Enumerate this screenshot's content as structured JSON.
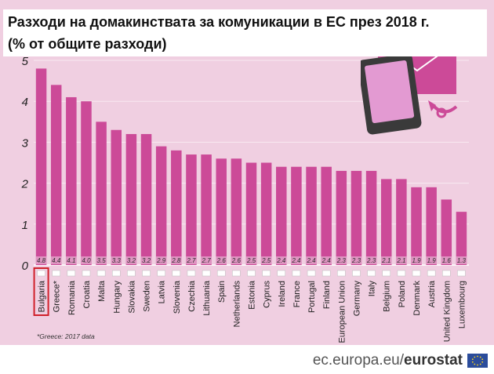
{
  "title_line1": "Разходи на домакинствата за комуникации в ЕС през 2018 г.",
  "title_line2": "(% от общите разходи)",
  "footnote": "*Greece: 2017 data",
  "source_prefix": "ec.europa.eu/",
  "source_brand": "eurostat",
  "colors": {
    "background": "#f0cfe1",
    "bar": "#cc4a98",
    "bar_label_box": "#e3a6cc",
    "highlight_frame": "#d0202a"
  },
  "chart_data": {
    "type": "bar",
    "title": "Разходи на домакинствата за комуникации в ЕС през 2018 г.",
    "subtitle": "(% от общите разходи)",
    "categories": [
      "Bulgaria",
      "Greece*",
      "Romania",
      "Croatia",
      "Malta",
      "Hungary",
      "Slovakia",
      "Sweden",
      "Latvia",
      "Slovenia",
      "Czechia",
      "Lithuania",
      "Spain",
      "Netherlands",
      "Estonia",
      "Cyprus",
      "Ireland",
      "France",
      "Portugal",
      "Finland",
      "European Union",
      "Germany",
      "Italy",
      "Belgium",
      "Poland",
      "Denmark",
      "Austria",
      "United Kingdom",
      "Luxembourg"
    ],
    "values": [
      4.8,
      4.4,
      4.1,
      4.0,
      3.5,
      3.3,
      3.2,
      3.2,
      2.9,
      2.8,
      2.7,
      2.7,
      2.6,
      2.6,
      2.5,
      2.5,
      2.4,
      2.4,
      2.4,
      2.4,
      2.3,
      2.3,
      2.3,
      2.1,
      2.1,
      1.9,
      1.9,
      1.6,
      1.3
    ],
    "value_labels": [
      "4.8",
      "4.4",
      "4.1",
      "4.0",
      "3.5",
      "3.3",
      "3.2",
      "3.2",
      "2.9",
      "2.8",
      "2.7",
      "2.7",
      "2.6",
      "2.6",
      "2.5",
      "2.5",
      "2.4",
      "2.4",
      "2.4",
      "2.4",
      "2.3",
      "2.3",
      "2.3",
      "2.1",
      "2.1",
      "1.9",
      "1.9",
      "1.6",
      "1.3"
    ],
    "y_ticks": [
      "0",
      "1",
      "2",
      "3",
      "4",
      "5"
    ],
    "ylim": [
      0,
      5
    ],
    "xlabel": "",
    "ylabel": "",
    "grid": true,
    "highlighted_category": "Bulgaria"
  }
}
